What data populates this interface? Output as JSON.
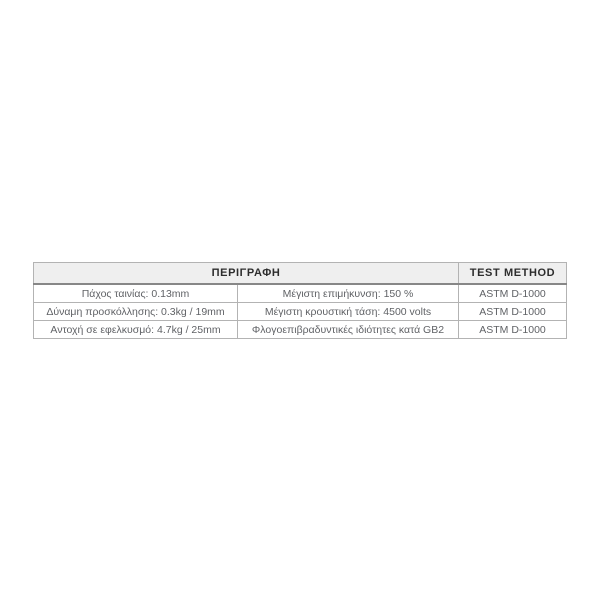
{
  "table": {
    "header": {
      "description_label": "ΠΕΡΙΓΡΑΦΗ",
      "test_method_label": "TEST METHOD"
    },
    "rows": [
      {
        "property_left": "Πάχος ταινίας: 0.13mm",
        "property_right": "Μέγιστη επιμήκυνση: 150 %",
        "test_method": "ASTM D-1000"
      },
      {
        "property_left": "Δύναμη προσκόλλησης: 0.3kg / 19mm",
        "property_right": "Μέγιστη κρουστική τάση: 4500 volts",
        "test_method": "ASTM D-1000"
      },
      {
        "property_left": "Αντοχή σε εφελκυσμό: 4.7kg / 25mm",
        "property_right": "Φλογοεπιβραδυντικές ιδιότητες κατά GB2",
        "test_method": "ASTM D-1000"
      }
    ],
    "colors": {
      "header_background": "#efefef",
      "cell_border": "#b3b3b3",
      "header_bottom_border": "#878787",
      "header_text": "#2d2d2d",
      "body_text": "#606266",
      "page_background": "#ffffff"
    }
  }
}
